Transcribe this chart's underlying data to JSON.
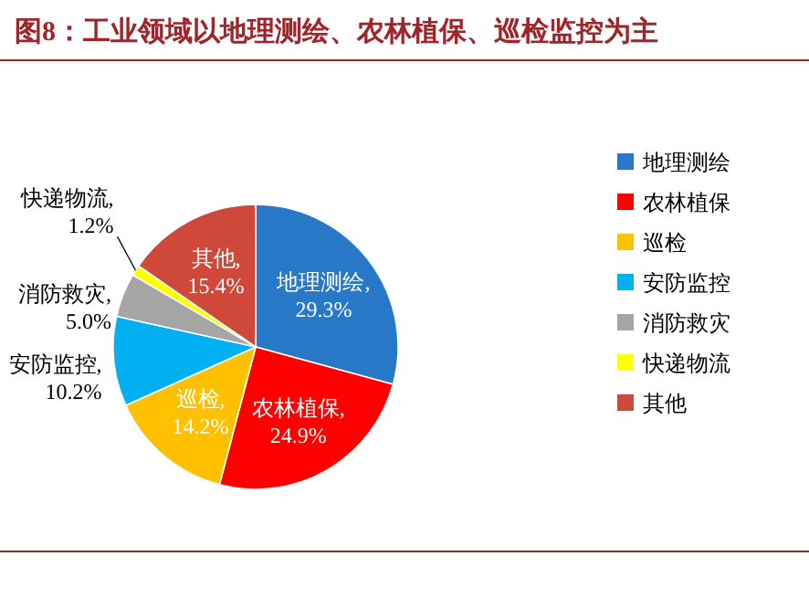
{
  "chart_data": {
    "type": "pie",
    "title": "图8：工业领域以地理测绘、农林植保、巡检监控为主",
    "categories": [
      "地理测绘",
      "农林植保",
      "巡检",
      "安防监控",
      "消防救灾",
      "快递物流",
      "其他"
    ],
    "values": [
      29.3,
      24.9,
      14.2,
      10.2,
      5.0,
      1.2,
      15.4
    ],
    "colors": [
      "#2878c8",
      "#ff0000",
      "#ffc000",
      "#00b0f0",
      "#a5a5a5",
      "#ffff00",
      "#d0483a"
    ],
    "value_labels": [
      "地理测绘,29.3%",
      "农林植保,24.9%",
      "巡检,14.2%",
      "安防监控,10.2%",
      "消防救灾,5.0%",
      "快递物流,1.2%",
      "其他,15.4%"
    ],
    "legend": "right"
  }
}
